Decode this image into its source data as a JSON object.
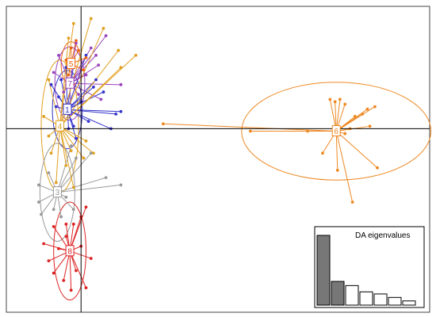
{
  "chart_data": {
    "type": "scatter",
    "title": "",
    "xlabel": "",
    "ylabel": "",
    "grid": false,
    "xlim": [
      -3.0,
      14.0
    ],
    "ylim": [
      -7.5,
      5.0
    ],
    "axes_origin": [
      0,
      0
    ],
    "groups": [
      {
        "label": "1",
        "color": "#3333cc",
        "center": [
          -0.55,
          0.78
        ],
        "ellipse_radii": [
          0.6,
          1.6
        ],
        "points": [
          [
            0.2,
            3.0
          ],
          [
            -0.6,
            2.5
          ],
          [
            -1.2,
            1.8
          ],
          [
            0.6,
            2.0
          ],
          [
            0.9,
            1.5
          ],
          [
            1.4,
            0.6
          ],
          [
            1.6,
            0.7
          ],
          [
            1.2,
            0.0
          ],
          [
            0.3,
            0.3
          ],
          [
            -0.3,
            0.1
          ],
          [
            -1.0,
            0.9
          ],
          [
            -0.9,
            1.3
          ],
          [
            -0.5,
            0.0
          ],
          [
            -0.2,
            -0.4
          ],
          [
            0.0,
            1.1
          ],
          [
            -0.8,
            2.0
          ],
          [
            -0.3,
            2.6
          ],
          [
            0.5,
            1.7
          ]
        ]
      },
      {
        "label": "7",
        "color": "#9944bb",
        "center": [
          -0.45,
          1.85
        ],
        "ellipse_radii": [
          0.6,
          1.5
        ],
        "points": [
          [
            -0.2,
            3.5
          ],
          [
            0.4,
            3.3
          ],
          [
            0.7,
            2.6
          ],
          [
            0.8,
            1.2
          ],
          [
            0.6,
            3.0
          ],
          [
            -0.9,
            3.0
          ],
          [
            -1.1,
            2.3
          ],
          [
            -0.4,
            0.6
          ],
          [
            1.6,
            1.8
          ],
          [
            1.0,
            3.8
          ],
          [
            -0.7,
            1.5
          ],
          [
            0.2,
            2.2
          ],
          [
            -0.1,
            1.4
          ]
        ]
      },
      {
        "label": "4",
        "color": "#e0a020",
        "center": [
          -0.85,
          0.1
        ],
        "ellipse_radii": [
          0.75,
          2.7
        ],
        "points": [
          [
            -0.3,
            4.3
          ],
          [
            0.4,
            4.5
          ],
          [
            0.9,
            4.1
          ],
          [
            1.5,
            3.2
          ],
          [
            2.2,
            3.0
          ],
          [
            1.6,
            2.5
          ],
          [
            -0.5,
            3.7
          ],
          [
            -1.3,
            2.0
          ],
          [
            -1.5,
            0.5
          ],
          [
            -1.3,
            -0.3
          ],
          [
            -0.4,
            -0.9
          ],
          [
            0.1,
            -1.2
          ],
          [
            -0.6,
            -1.5
          ],
          [
            -1.0,
            -2.2
          ],
          [
            -0.3,
            -2.4
          ],
          [
            0.2,
            -0.5
          ],
          [
            0.5,
            -1.0
          ],
          [
            -1.2,
            -1.0
          ]
        ]
      },
      {
        "label": "5",
        "color": "#ee6611",
        "center": [
          -0.4,
          2.65
        ],
        "ellipse_radii": [
          0.4,
          0.9
        ],
        "points": [
          [
            -0.4,
            3.3
          ],
          [
            -0.2,
            3.6
          ],
          [
            -0.5,
            2.2
          ],
          [
            -0.3,
            2.5
          ],
          [
            0.2,
            2.9
          ],
          [
            -0.6,
            2.8
          ],
          [
            -0.1,
            3.2
          ],
          [
            0.1,
            2.4
          ]
        ]
      },
      {
        "label": "3",
        "color": "#999999",
        "center": [
          -0.95,
          -2.6
        ],
        "ellipse_radii": [
          0.7,
          2.0
        ],
        "points": [
          [
            -0.4,
            -0.7
          ],
          [
            -0.2,
            -1.2
          ],
          [
            0.4,
            -1.0
          ],
          [
            1.0,
            -2.0
          ],
          [
            1.6,
            -2.3
          ],
          [
            -0.3,
            -3.3
          ],
          [
            -0.8,
            -3.6
          ],
          [
            -1.6,
            -3.5
          ],
          [
            -1.7,
            -3.0
          ],
          [
            -1.7,
            -2.3
          ],
          [
            -1.3,
            -1.8
          ],
          [
            -1.1,
            -3.3
          ],
          [
            -0.6,
            -2.8
          ]
        ]
      },
      {
        "label": "8",
        "color": "#dd2222",
        "center": [
          -0.45,
          -5.0
        ],
        "ellipse_radii": [
          0.65,
          2.0
        ],
        "points": [
          [
            0.2,
            -3.2
          ],
          [
            0.0,
            -3.6
          ],
          [
            -0.6,
            -3.9
          ],
          [
            -1.1,
            -4.0
          ],
          [
            -1.5,
            -4.7
          ],
          [
            -1.3,
            -5.4
          ],
          [
            -1.1,
            -5.9
          ],
          [
            -0.7,
            -6.2
          ],
          [
            -0.4,
            -6.6
          ],
          [
            0.2,
            -6.5
          ],
          [
            0.4,
            -5.3
          ],
          [
            0.0,
            -4.8
          ],
          [
            -0.6,
            -4.4
          ],
          [
            -0.2,
            -5.8
          ],
          [
            -0.9,
            -4.9
          ],
          [
            -0.3,
            -3.9
          ]
        ]
      },
      {
        "label": "6",
        "color": "#ee8822",
        "center": [
          10.25,
          -0.1
        ],
        "ellipse_radii": [
          3.8,
          2.0
        ],
        "points": [
          [
            3.3,
            0.2
          ],
          [
            6.8,
            -0.1
          ],
          [
            9.1,
            -0.1
          ],
          [
            9.7,
            -1.0
          ],
          [
            10.3,
            -1.7
          ],
          [
            10.4,
            1.2
          ],
          [
            10.6,
            1.0
          ],
          [
            10.8,
            0.0
          ],
          [
            11.5,
            0.8
          ],
          [
            11.8,
            0.9
          ],
          [
            11.6,
            0.1
          ],
          [
            10.2,
            1.1
          ],
          [
            11.3,
            0.6
          ],
          [
            11.9,
            -1.6
          ],
          [
            11.0,
            0.5
          ],
          [
            10.9,
            -3.0
          ],
          [
            10.6,
            -0.2
          ],
          [
            10.0,
            1.2
          ]
        ]
      }
    ],
    "inset": {
      "title": "DA eigenvalues",
      "type": "bar",
      "values": [
        1.0,
        0.34,
        0.28,
        0.19,
        0.16,
        0.11,
        0.06
      ],
      "retained": 2,
      "retained_color": "#777777",
      "other_color": "#ffffff"
    }
  }
}
